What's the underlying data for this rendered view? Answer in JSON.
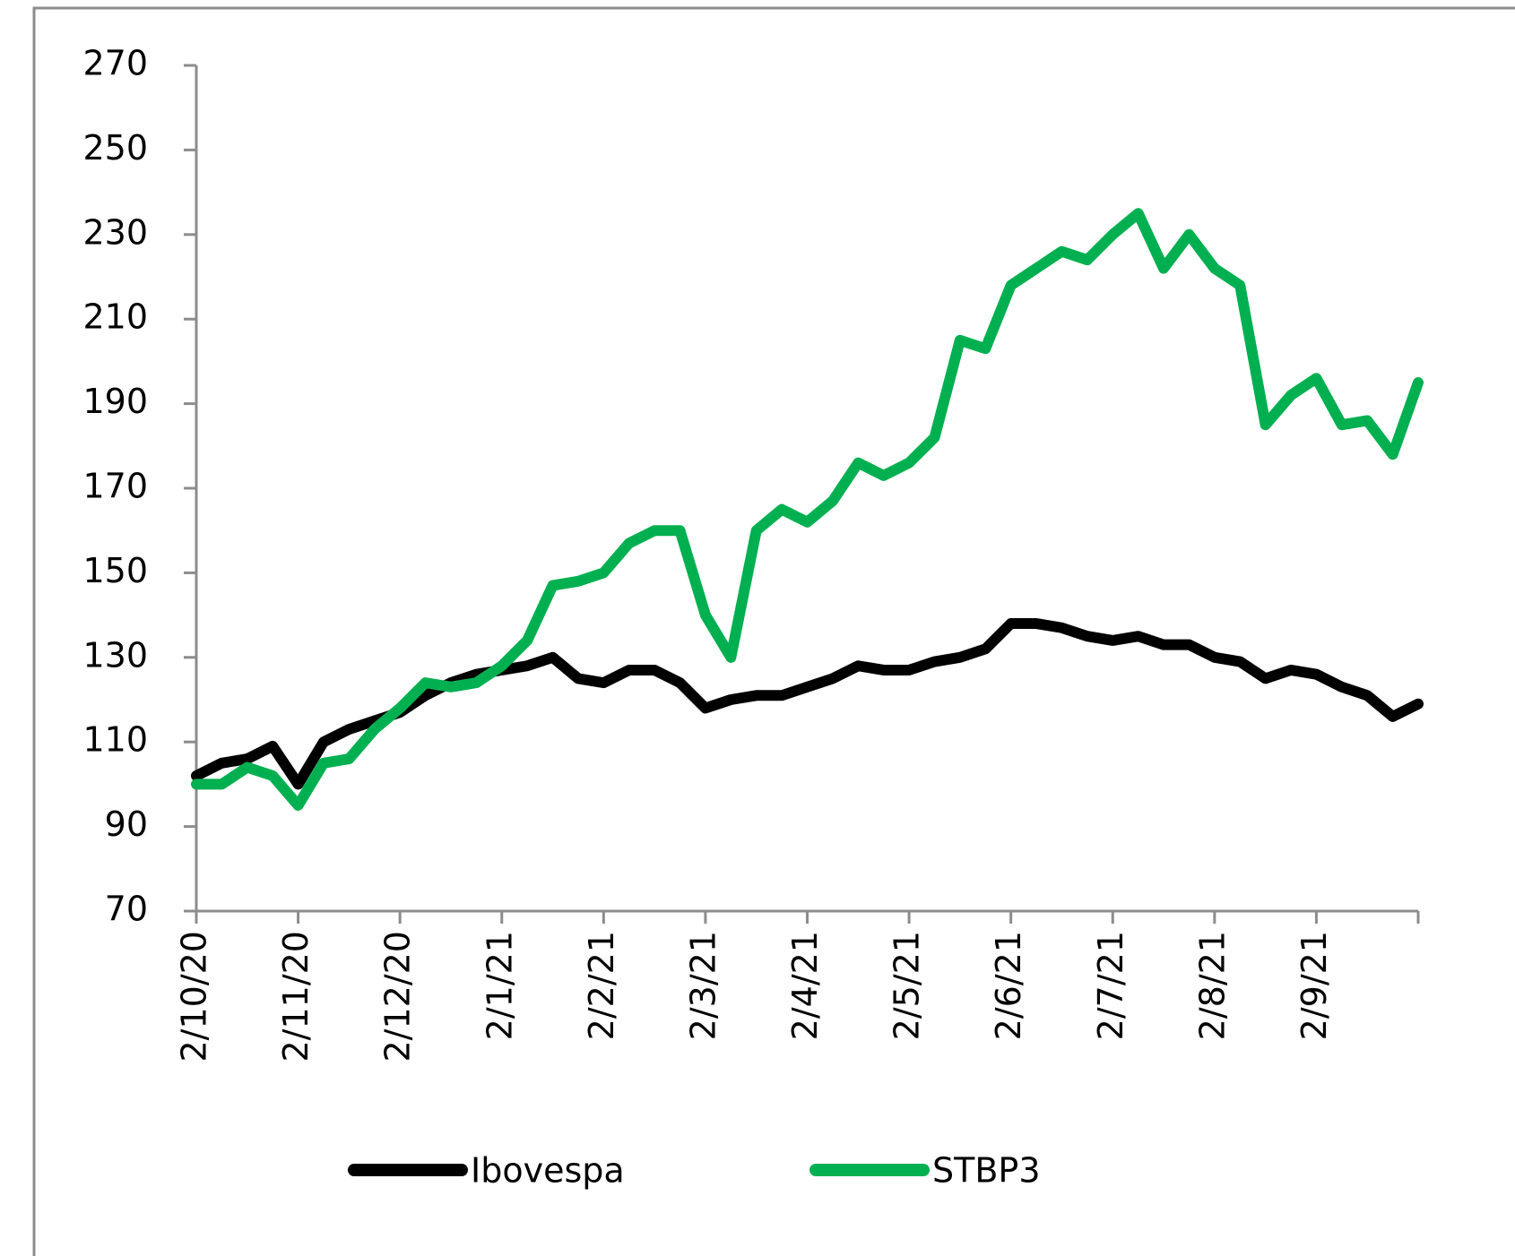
{
  "chart_data": {
    "type": "line",
    "categories": [
      "2/10/20",
      null,
      null,
      null,
      "2/11/20",
      null,
      null,
      null,
      "2/12/20",
      null,
      null,
      null,
      "2/1/21",
      null,
      null,
      null,
      "2/2/21",
      null,
      null,
      null,
      "2/3/21",
      null,
      null,
      null,
      "2/4/21",
      null,
      null,
      null,
      "2/5/21",
      null,
      null,
      null,
      "2/6/21",
      null,
      null,
      null,
      "2/7/21",
      null,
      null,
      null,
      "2/8/21",
      null,
      null,
      null,
      "2/9/21",
      null,
      null,
      null,
      null
    ],
    "series": [
      {
        "name": "Ibovespa",
        "color": "#000000",
        "values": [
          102,
          105,
          106,
          109,
          100,
          110,
          113,
          115,
          117,
          121,
          124,
          126,
          127,
          128,
          130,
          125,
          124,
          127,
          127,
          124,
          118,
          120,
          121,
          121,
          123,
          125,
          128,
          127,
          127,
          129,
          130,
          132,
          138,
          138,
          137,
          135,
          134,
          135,
          133,
          133,
          130,
          129,
          125,
          127,
          126,
          123,
          121,
          116,
          119
        ]
      },
      {
        "name": "STBP3",
        "color": "#00b050",
        "values": [
          100,
          100,
          104,
          102,
          95,
          105,
          106,
          113,
          118,
          124,
          123,
          124,
          128,
          134,
          147,
          148,
          150,
          157,
          160,
          160,
          140,
          130,
          160,
          165,
          162,
          167,
          176,
          173,
          176,
          182,
          205,
          203,
          218,
          222,
          226,
          224,
          230,
          235,
          222,
          230,
          222,
          218,
          185,
          192,
          196,
          185,
          186,
          178,
          195
        ]
      }
    ],
    "ylim": [
      70,
      270
    ],
    "yticks": [
      70,
      90,
      110,
      130,
      150,
      170,
      190,
      210,
      230,
      250,
      270
    ],
    "grid": false,
    "legend": "bottom"
  }
}
